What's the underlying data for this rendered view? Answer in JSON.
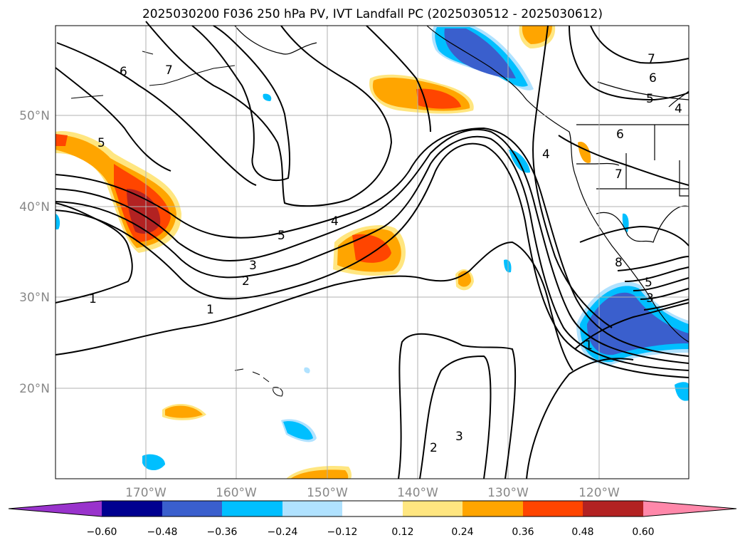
{
  "title": "2025030200 F036 250 hPa PV, IVT Landfall PC (2025030512 - 2025030612)",
  "lat_labels": [
    "50°N",
    "40°N",
    "30°N",
    "20°N"
  ],
  "lon_labels": [
    "170°W",
    "160°W",
    "150°W",
    "140°W",
    "130°W",
    "120°W"
  ],
  "colorbar": {
    "ticks": [
      "−0.60",
      "−0.48",
      "−0.36",
      "−0.24",
      "−0.12",
      "0.12",
      "0.24",
      "0.36",
      "0.48",
      "0.60"
    ],
    "colors": [
      "#9933cc",
      "#000090",
      "#3a5fcd",
      "#00bfff",
      "#b0e2ff",
      "#ffffff",
      "#ffe680",
      "#ffa500",
      "#ff4500",
      "#b22222",
      "#ff88aa"
    ]
  },
  "contour_labels": [
    "6",
    "7",
    "5",
    "4",
    "5",
    "3",
    "2",
    "1",
    "1",
    "7",
    "6",
    "5",
    "4",
    "6",
    "7",
    "4",
    "1",
    "2",
    "3",
    "8",
    "5",
    "3"
  ]
}
